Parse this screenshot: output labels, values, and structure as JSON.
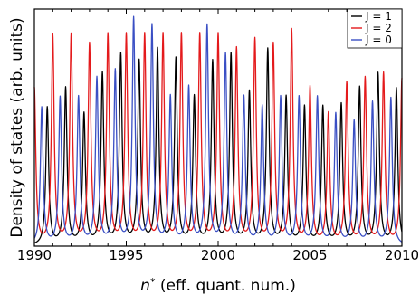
{
  "chart_data": {
    "type": "line",
    "ylabel": "Density of states (arb. units)",
    "xlabel_italic": "n",
    "xlabel_superscript": "*",
    "xlabel_rest": " (eff. quant. num.)",
    "xlim": [
      1990,
      2010
    ],
    "xticks": [
      1990,
      1995,
      2000,
      2005,
      2010
    ],
    "ylim": [
      0,
      1
    ],
    "yticks_labeled": false,
    "legend_position": "top-right",
    "peak_width": 0.09,
    "series": [
      {
        "name": "J = 1",
        "color": "#000000",
        "peaks": [
          {
            "x": 1990.7,
            "y": 0.58
          },
          {
            "x": 1991.7,
            "y": 0.66
          },
          {
            "x": 1992.7,
            "y": 0.55
          },
          {
            "x": 1993.7,
            "y": 0.72
          },
          {
            "x": 1994.7,
            "y": 0.8
          },
          {
            "x": 1995.7,
            "y": 0.77
          },
          {
            "x": 1996.7,
            "y": 0.82
          },
          {
            "x": 1997.7,
            "y": 0.78
          },
          {
            "x": 1998.7,
            "y": 0.62
          },
          {
            "x": 1999.7,
            "y": 0.77
          },
          {
            "x": 2000.7,
            "y": 0.8
          },
          {
            "x": 2001.7,
            "y": 0.64
          },
          {
            "x": 2002.7,
            "y": 0.82
          },
          {
            "x": 2003.7,
            "y": 0.62
          },
          {
            "x": 2004.7,
            "y": 0.58
          },
          {
            "x": 2005.7,
            "y": 0.58
          },
          {
            "x": 2006.7,
            "y": 0.59
          },
          {
            "x": 2007.7,
            "y": 0.66
          },
          {
            "x": 2008.7,
            "y": 0.72
          },
          {
            "x": 2009.7,
            "y": 0.66
          }
        ]
      },
      {
        "name": "J = 2",
        "color": "#e41a1c",
        "peaks": [
          {
            "x": 1990.0,
            "y": 0.66
          },
          {
            "x": 1991.0,
            "y": 0.88
          },
          {
            "x": 1992.0,
            "y": 0.88
          },
          {
            "x": 1993.0,
            "y": 0.84
          },
          {
            "x": 1994.0,
            "y": 0.88
          },
          {
            "x": 1995.0,
            "y": 0.88
          },
          {
            "x": 1996.0,
            "y": 0.88
          },
          {
            "x": 1997.0,
            "y": 0.88
          },
          {
            "x": 1998.0,
            "y": 0.88
          },
          {
            "x": 1999.0,
            "y": 0.88
          },
          {
            "x": 2000.0,
            "y": 0.88
          },
          {
            "x": 2001.0,
            "y": 0.82
          },
          {
            "x": 2002.0,
            "y": 0.86
          },
          {
            "x": 2003.0,
            "y": 0.84
          },
          {
            "x": 2004.0,
            "y": 0.9
          },
          {
            "x": 2005.0,
            "y": 0.66
          },
          {
            "x": 2006.0,
            "y": 0.55
          },
          {
            "x": 2007.0,
            "y": 0.68
          },
          {
            "x": 2008.0,
            "y": 0.7
          },
          {
            "x": 2009.0,
            "y": 0.72
          },
          {
            "x": 2010.0,
            "y": 0.7
          }
        ]
      },
      {
        "name": "J = 0",
        "color": "#3a4fc4",
        "peaks": [
          {
            "x": 1990.4,
            "y": 0.58
          },
          {
            "x": 1991.4,
            "y": 0.62
          },
          {
            "x": 1992.4,
            "y": 0.62
          },
          {
            "x": 1993.4,
            "y": 0.7
          },
          {
            "x": 1994.4,
            "y": 0.73
          },
          {
            "x": 1995.4,
            "y": 0.95
          },
          {
            "x": 1996.4,
            "y": 0.92
          },
          {
            "x": 1997.4,
            "y": 0.62
          },
          {
            "x": 1998.4,
            "y": 0.66
          },
          {
            "x": 1999.4,
            "y": 0.92
          },
          {
            "x": 2000.4,
            "y": 0.8
          },
          {
            "x": 2001.4,
            "y": 0.62
          },
          {
            "x": 2002.4,
            "y": 0.58
          },
          {
            "x": 2003.4,
            "y": 0.62
          },
          {
            "x": 2004.4,
            "y": 0.62
          },
          {
            "x": 2005.4,
            "y": 0.62
          },
          {
            "x": 2006.4,
            "y": 0.55
          },
          {
            "x": 2007.4,
            "y": 0.52
          },
          {
            "x": 2008.4,
            "y": 0.6
          },
          {
            "x": 2009.4,
            "y": 0.62
          }
        ]
      }
    ]
  }
}
